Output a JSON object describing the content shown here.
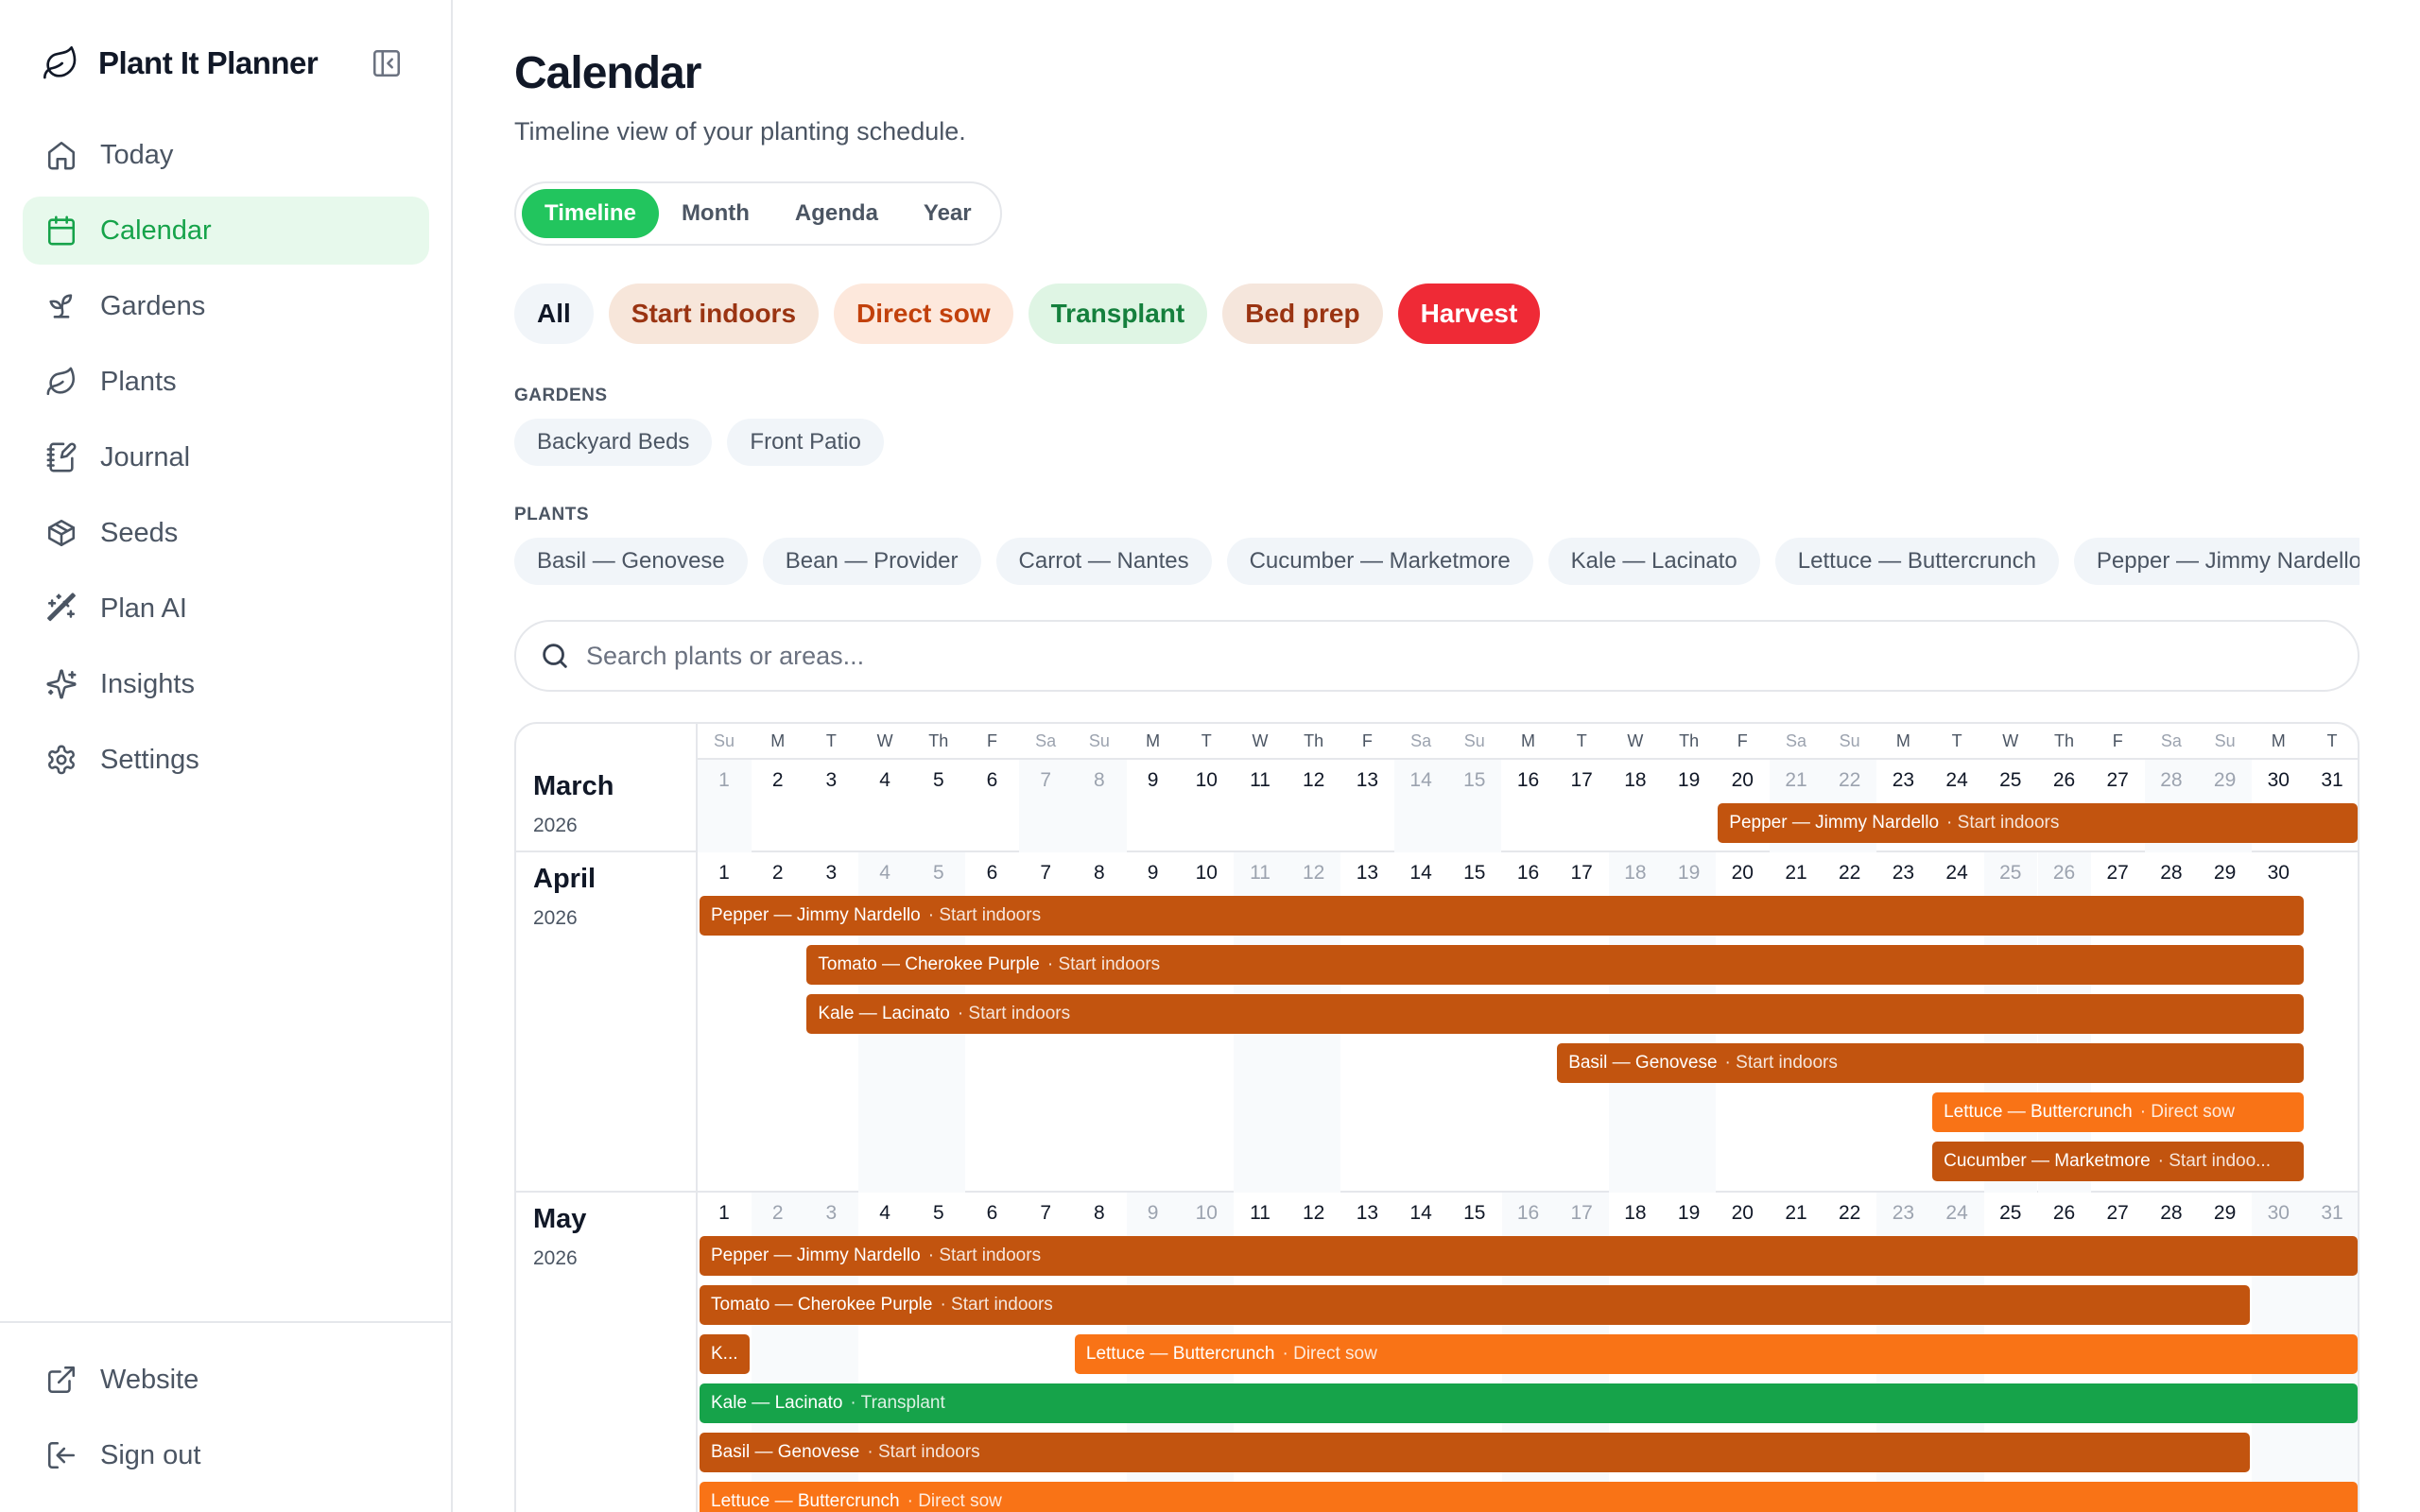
{
  "app": {
    "name": "Plant It Planner"
  },
  "sidebar": {
    "items": [
      {
        "label": "Today",
        "icon": "home-icon",
        "active": false
      },
      {
        "label": "Calendar",
        "icon": "calendar-icon",
        "active": true
      },
      {
        "label": "Gardens",
        "icon": "sprout-icon",
        "active": false
      },
      {
        "label": "Plants",
        "icon": "leaf-icon",
        "active": false
      },
      {
        "label": "Journal",
        "icon": "notebook-icon",
        "active": false
      },
      {
        "label": "Seeds",
        "icon": "package-icon",
        "active": false
      },
      {
        "label": "Plan AI",
        "icon": "wand-icon",
        "active": false
      },
      {
        "label": "Insights",
        "icon": "sparkles-icon",
        "active": false
      },
      {
        "label": "Settings",
        "icon": "gear-icon",
        "active": false
      }
    ],
    "bottom_items": [
      {
        "label": "Website",
        "icon": "external-link-icon"
      },
      {
        "label": "Sign out",
        "icon": "sign-out-icon"
      }
    ]
  },
  "page": {
    "title": "Calendar",
    "subtitle": "Timeline view of your planting schedule."
  },
  "view_tabs": [
    {
      "label": "Timeline",
      "active": true
    },
    {
      "label": "Month",
      "active": false
    },
    {
      "label": "Agenda",
      "active": false
    },
    {
      "label": "Year",
      "active": false
    }
  ],
  "event_filters": [
    {
      "label": "All",
      "bg": "#f1f5f9",
      "fg": "#111827"
    },
    {
      "label": "Start indoors",
      "bg": "#f7e6da",
      "fg": "#9a3412"
    },
    {
      "label": "Direct sow",
      "bg": "#fde8dc",
      "fg": "#c2410c"
    },
    {
      "label": "Transplant",
      "bg": "#dff5e4",
      "fg": "#15803d"
    },
    {
      "label": "Bed prep",
      "bg": "#f5e6dc",
      "fg": "#9a3412"
    },
    {
      "label": "Harvest",
      "bg": "#ef2a36",
      "fg": "#ffffff"
    }
  ],
  "gardens": {
    "label": "GARDENS",
    "items": [
      "Backyard Beds",
      "Front Patio"
    ]
  },
  "plants": {
    "label": "PLANTS",
    "items": [
      "Basil — Genovese",
      "Bean — Provider",
      "Carrot — Nantes",
      "Cucumber — Marketmore",
      "Kale — Lacinato",
      "Lettuce — Buttercrunch",
      "Pepper — Jimmy Nardello"
    ]
  },
  "search": {
    "placeholder": "Search plants or areas..."
  },
  "colors": {
    "start_indoors": "#c2540f",
    "direct_sow": "#f97316",
    "transplant": "#16a34a",
    "accent": "#22c55e"
  },
  "timeline": {
    "weekday_headers": [
      "Su",
      "M",
      "T",
      "W",
      "Th",
      "F",
      "Sa",
      "Su",
      "M",
      "T",
      "W",
      "Th",
      "F",
      "Sa",
      "Su",
      "M",
      "T",
      "W",
      "Th",
      "F",
      "Sa",
      "Su",
      "M",
      "T",
      "W",
      "Th",
      "F",
      "Sa",
      "Su",
      "M",
      "T"
    ],
    "months": [
      {
        "name": "March",
        "year": "2026",
        "days": 31,
        "first_weekday": 0,
        "events": [
          {
            "plant": "Pepper — Jimmy Nardello",
            "event": "· Start indoors",
            "type": "start_indoors",
            "start": 20,
            "end": 31
          }
        ]
      },
      {
        "name": "April",
        "year": "2026",
        "days": 30,
        "first_weekday": 3,
        "events": [
          {
            "plant": "Pepper — Jimmy Nardello",
            "event": "· Start indoors",
            "type": "start_indoors",
            "start": 1,
            "end": 30
          },
          {
            "plant": "Tomato — Cherokee Purple",
            "event": "· Start indoors",
            "type": "start_indoors",
            "start": 3,
            "end": 30
          },
          {
            "plant": "Kale — Lacinato",
            "event": "· Start indoors",
            "type": "start_indoors",
            "start": 3,
            "end": 30
          },
          {
            "plant": "Basil — Genovese",
            "event": "· Start indoors",
            "type": "start_indoors",
            "start": 17,
            "end": 30
          },
          {
            "plant": "Lettuce — Buttercrunch",
            "event": "· Direct sow",
            "type": "direct_sow",
            "start": 24,
            "end": 30
          },
          {
            "plant": "Cucumber — Marketmore",
            "event": "· Start indoo...",
            "type": "start_indoors",
            "start": 24,
            "end": 30
          }
        ]
      },
      {
        "name": "May",
        "year": "2026",
        "days": 31,
        "first_weekday": 5,
        "events": [
          {
            "plant": "Pepper — Jimmy Nardello",
            "event": "· Start indoors",
            "type": "start_indoors",
            "start": 1,
            "end": 31
          },
          {
            "plant": "Tomato — Cherokee Purple",
            "event": "· Start indoors",
            "type": "start_indoors",
            "start": 1,
            "end": 29
          },
          {
            "plant": "K...",
            "event": "",
            "type": "start_indoors",
            "start": 1,
            "end": 1
          },
          {
            "plant": "Lettuce — Buttercrunch",
            "event": "· Direct sow",
            "type": "direct_sow",
            "start": 8,
            "end": 31
          },
          {
            "plant": "Kale — Lacinato",
            "event": "· Transplant",
            "type": "transplant",
            "start": 1,
            "end": 31
          },
          {
            "plant": "Basil — Genovese",
            "event": "· Start indoors",
            "type": "start_indoors",
            "start": 1,
            "end": 29
          },
          {
            "plant": "Lettuce — Buttercrunch",
            "event": "· Direct sow",
            "type": "direct_sow",
            "start": 1,
            "end": 31
          }
        ]
      }
    ]
  }
}
